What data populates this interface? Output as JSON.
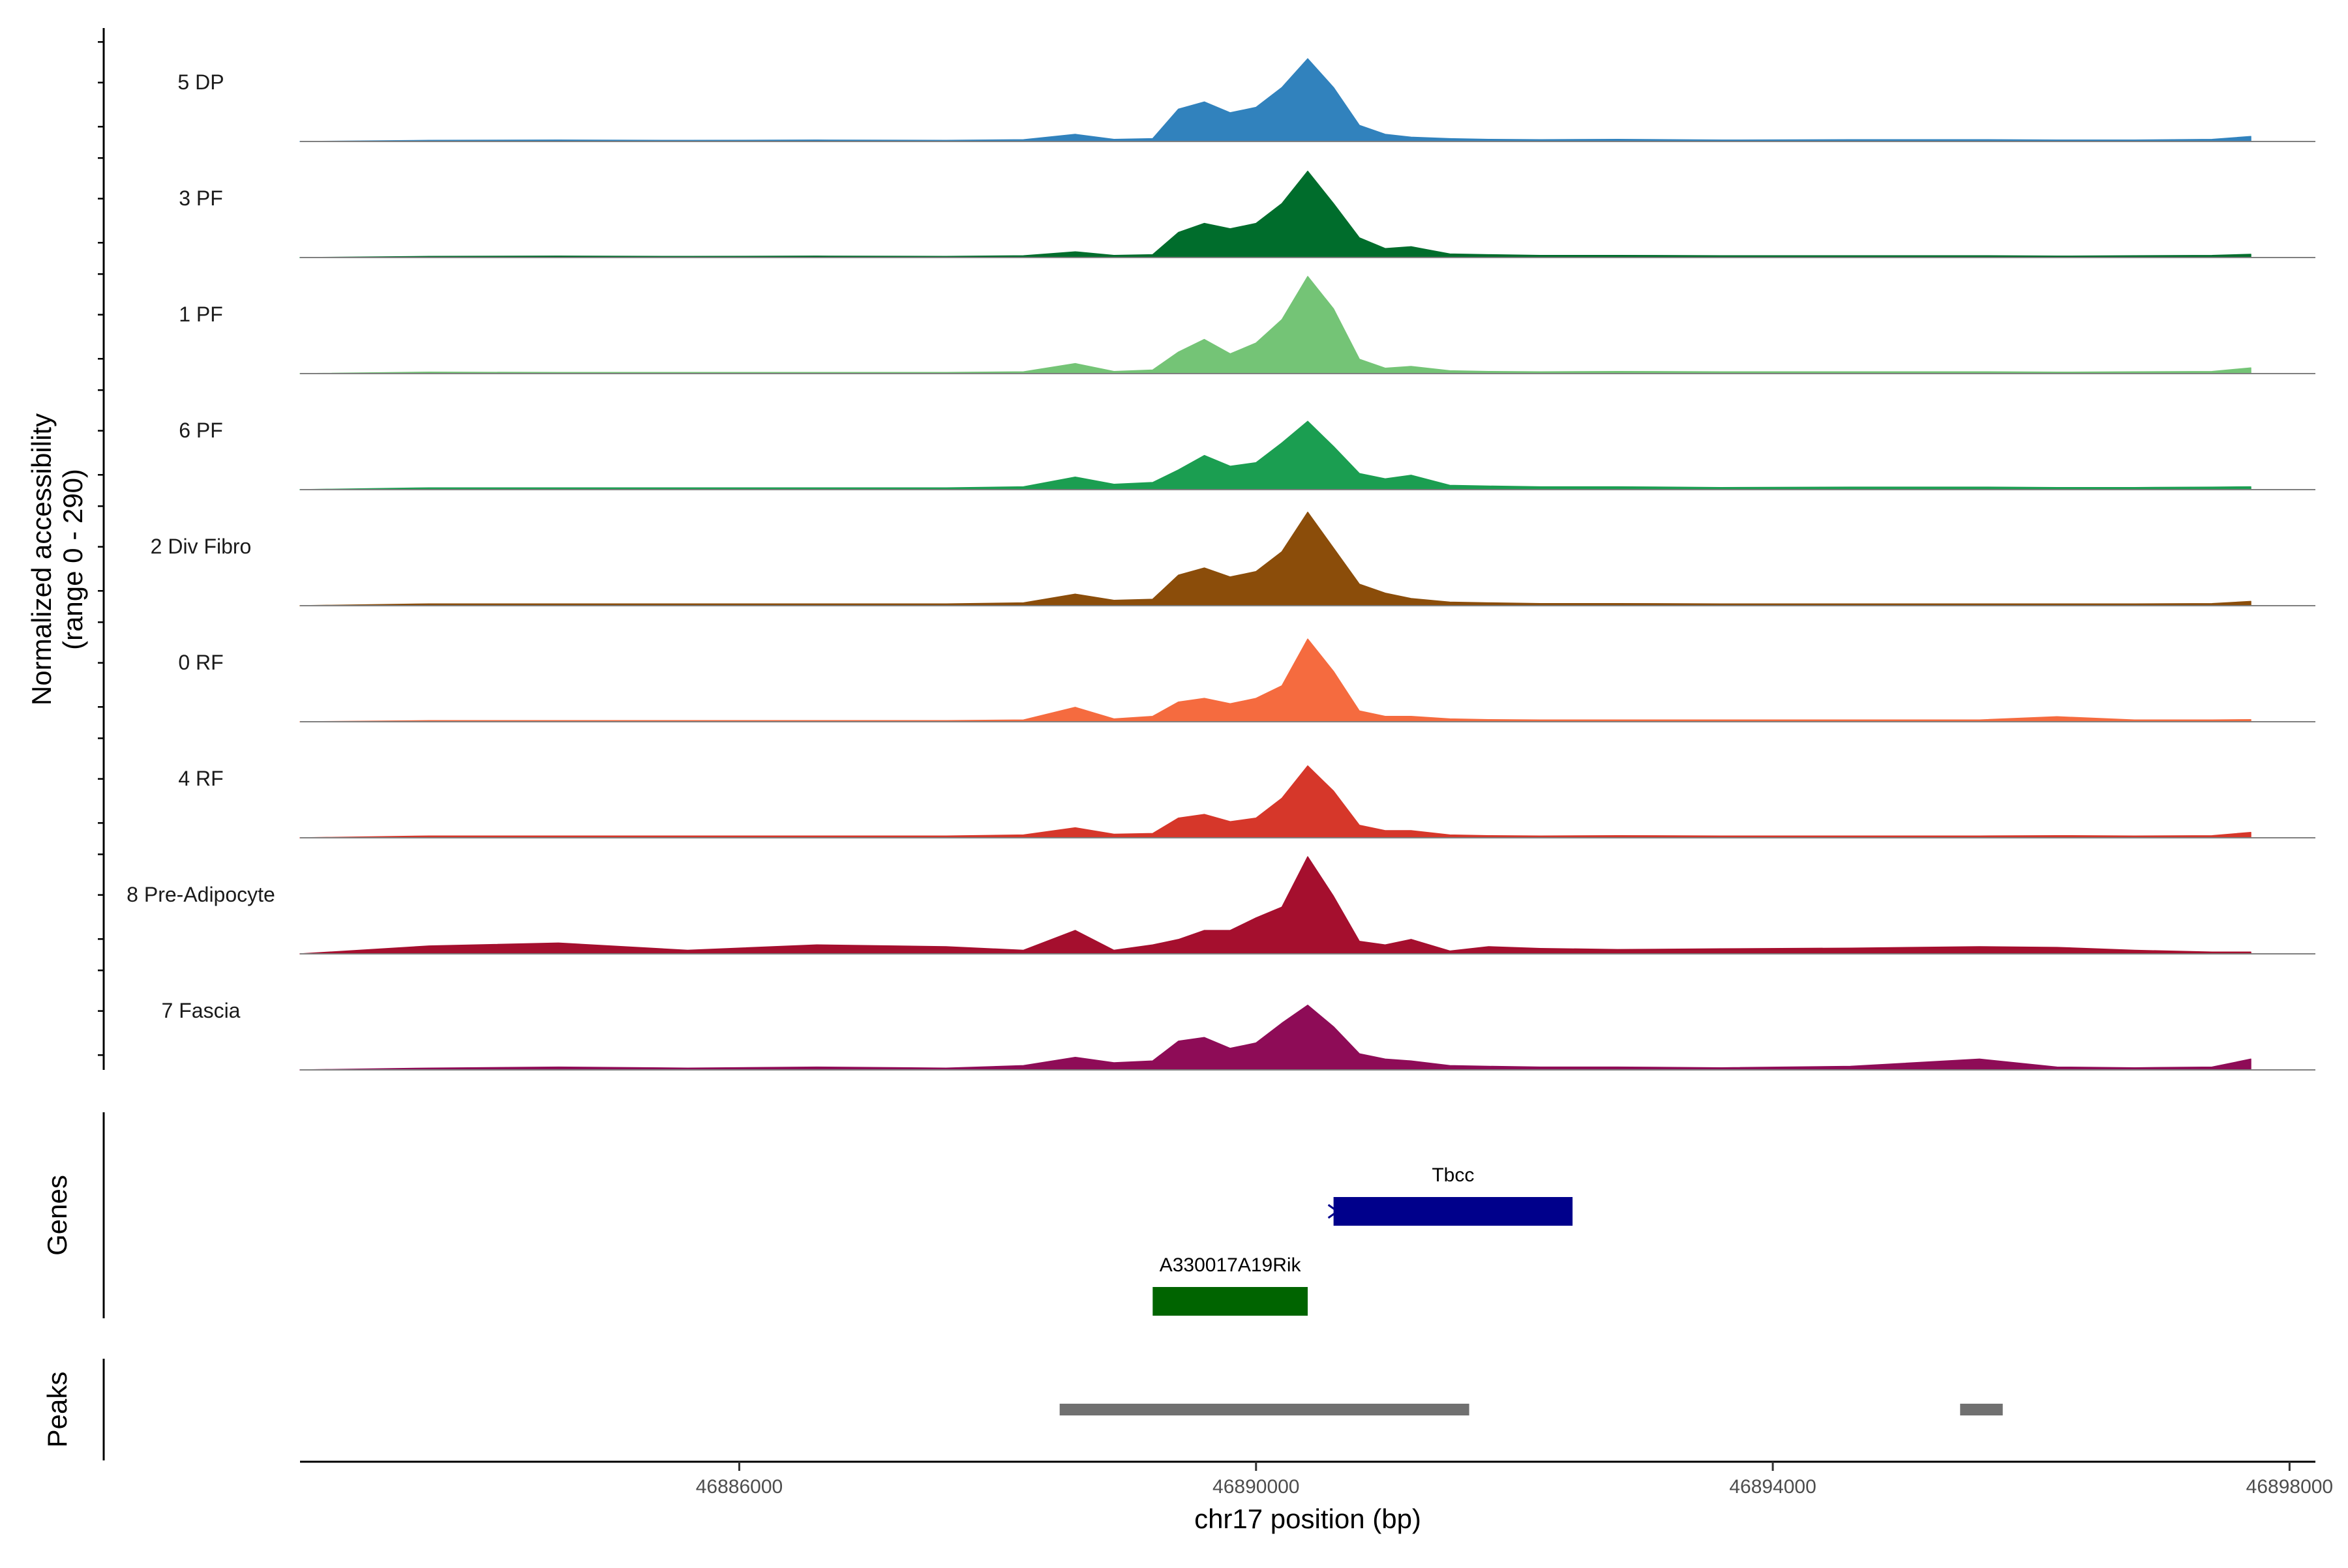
{
  "chart_data": {
    "type": "area",
    "y_axis_title_line1": "Normalized accessibility",
    "y_axis_title_line2": "(range 0 - 290)",
    "y_range": [
      0,
      290
    ],
    "x_axis_title": "chr17 position (bp)",
    "x_range": [
      46882600,
      46898200
    ],
    "x_ticks": [
      46886000,
      46890000,
      46894000,
      46898000
    ],
    "x_tick_labels": [
      "46886000",
      "46890000",
      "46894000",
      "46898000"
    ],
    "genes_label": "Genes",
    "peaks_label": "Peaks",
    "signal_bins": [
      46882600,
      46883600,
      46884600,
      46885600,
      46886600,
      46887600,
      46888200,
      46888600,
      46888900,
      46889200,
      46889400,
      46889600,
      46889800,
      46890000,
      46890200,
      46890400,
      46890600,
      46890800,
      46891000,
      46891200,
      46891500,
      46891800,
      46892200,
      46892800,
      46893600,
      46894600,
      46895600,
      46896200,
      46896800,
      46897400,
      46897700
    ],
    "tracks": [
      {
        "name": "5 DP",
        "color": "#3182BD",
        "values": [
          0,
          3,
          4,
          3,
          4,
          3,
          5,
          20,
          6,
          8,
          90,
          110,
          80,
          95,
          150,
          230,
          150,
          45,
          20,
          12,
          8,
          6,
          5,
          6,
          4,
          5,
          5,
          4,
          4,
          6,
          14
        ]
      },
      {
        "name": "3 PF",
        "color": "#006D2C",
        "values": [
          0,
          3,
          4,
          3,
          4,
          3,
          5,
          16,
          6,
          8,
          70,
          95,
          80,
          95,
          150,
          240,
          150,
          55,
          25,
          30,
          10,
          8,
          6,
          6,
          5,
          5,
          5,
          4,
          5,
          6,
          9
        ]
      },
      {
        "name": "1 PF",
        "color": "#74C476",
        "values": [
          0,
          4,
          3,
          3,
          3,
          3,
          5,
          28,
          6,
          10,
          60,
          95,
          55,
          85,
          150,
          270,
          180,
          40,
          15,
          20,
          8,
          6,
          5,
          6,
          5,
          5,
          5,
          4,
          5,
          6,
          16
        ]
      },
      {
        "name": "6 PF",
        "color": "#1B9E51",
        "values": [
          0,
          5,
          5,
          5,
          5,
          5,
          8,
          35,
          15,
          20,
          55,
          95,
          65,
          75,
          130,
          190,
          120,
          45,
          30,
          40,
          12,
          10,
          8,
          8,
          6,
          7,
          7,
          6,
          6,
          7,
          8
        ]
      },
      {
        "name": "2 Div Fibro",
        "color": "#8B4D0A",
        "values": [
          0,
          5,
          5,
          5,
          5,
          5,
          8,
          32,
          15,
          18,
          85,
          105,
          80,
          95,
          150,
          260,
          160,
          60,
          35,
          20,
          10,
          8,
          6,
          6,
          5,
          5,
          5,
          5,
          5,
          6,
          12
        ]
      },
      {
        "name": "0 RF",
        "color": "#F56B3F",
        "values": [
          0,
          3,
          3,
          3,
          3,
          3,
          5,
          40,
          8,
          15,
          55,
          65,
          50,
          65,
          100,
          230,
          140,
          30,
          15,
          15,
          8,
          6,
          5,
          5,
          5,
          5,
          5,
          14,
          5,
          5,
          6
        ]
      },
      {
        "name": "4 RF",
        "color": "#D6372A",
        "values": [
          0,
          5,
          5,
          5,
          5,
          5,
          8,
          28,
          10,
          12,
          55,
          65,
          45,
          55,
          110,
          200,
          130,
          35,
          20,
          20,
          8,
          6,
          5,
          6,
          5,
          5,
          5,
          6,
          5,
          6,
          15
        ]
      },
      {
        "name": "8 Pre-Adipocyte",
        "color": "#A50F2E",
        "values": [
          0,
          22,
          30,
          10,
          25,
          20,
          10,
          65,
          10,
          25,
          40,
          65,
          65,
          100,
          130,
          270,
          160,
          35,
          25,
          40,
          8,
          20,
          15,
          12,
          14,
          16,
          20,
          18,
          10,
          5,
          5
        ]
      },
      {
        "name": "7 Fascia",
        "color": "#8E0C57",
        "values": [
          0,
          5,
          8,
          5,
          8,
          5,
          12,
          35,
          20,
          25,
          80,
          90,
          60,
          75,
          130,
          180,
          120,
          45,
          30,
          25,
          12,
          10,
          8,
          8,
          6,
          10,
          30,
          8,
          6,
          8,
          30
        ]
      }
    ],
    "genes": [
      {
        "name": "Tbcc",
        "start": 46890600,
        "end": 46892450,
        "color": "#00008B",
        "strand": "+"
      },
      {
        "name": "A330017A19Rik",
        "start": 46889200,
        "end": 46890400,
        "color": "#006400",
        "strand": "-"
      }
    ],
    "peaks": [
      {
        "start": 46888480,
        "end": 46891650,
        "color": "#707070"
      },
      {
        "start": 46895450,
        "end": 46895780,
        "color": "#707070"
      }
    ]
  }
}
